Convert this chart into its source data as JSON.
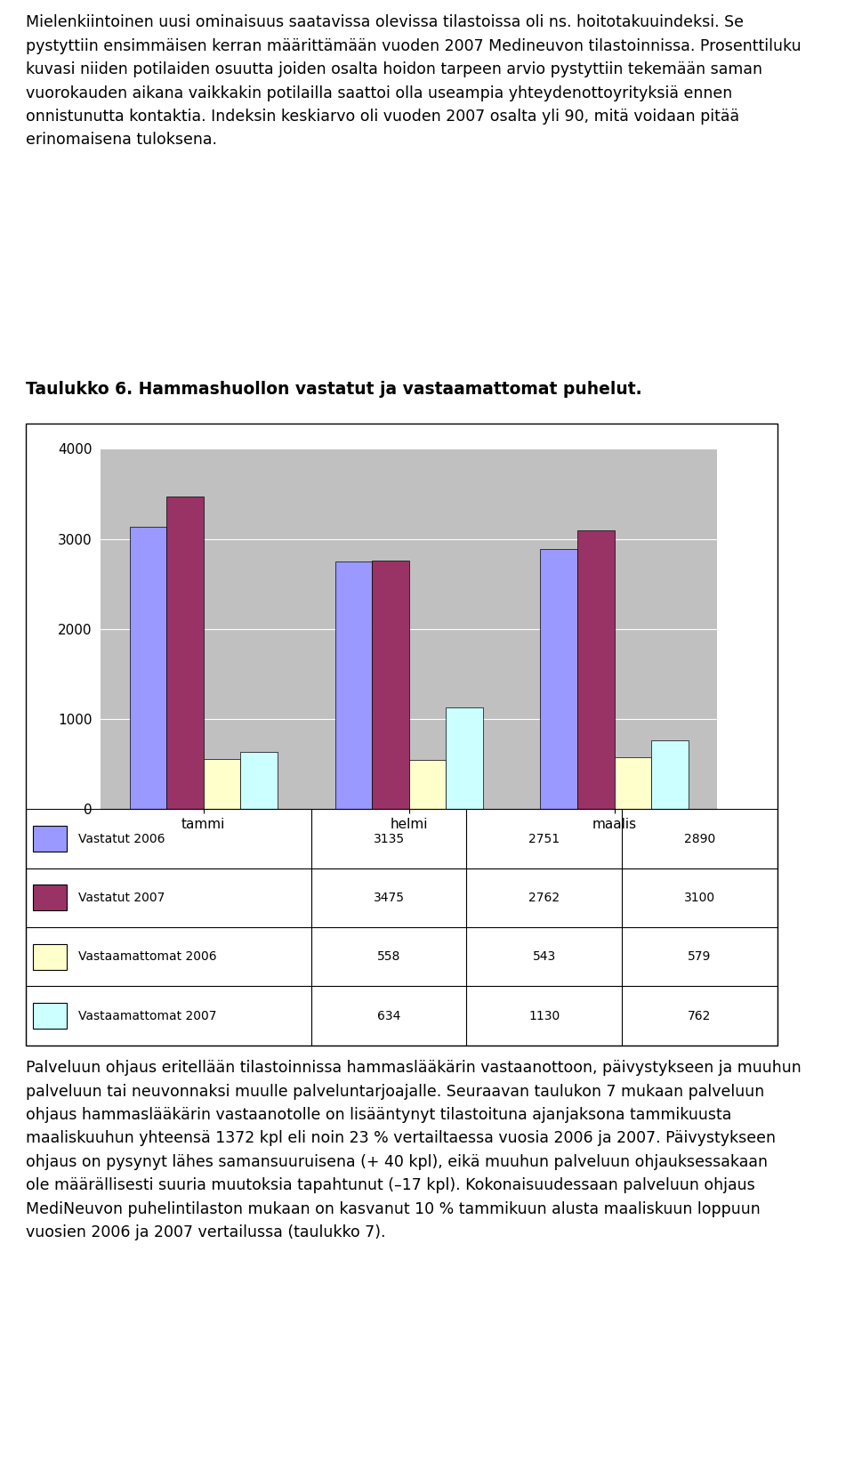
{
  "title": "Taulukko 6. Hammashuollon vastatut ja vastaamattomat puhelut.",
  "categories": [
    "tammi",
    "helmi",
    "maalis"
  ],
  "series": [
    {
      "label": "Vastatut 2006",
      "color": "#9999FF",
      "values": [
        3135,
        2751,
        2890
      ]
    },
    {
      "label": "Vastatut 2007",
      "color": "#993366",
      "values": [
        3475,
        2762,
        3100
      ]
    },
    {
      "label": "Vastaamattomat\n2006",
      "color": "#FFFFCC",
      "values": [
        558,
        543,
        579
      ]
    },
    {
      "label": "Vastaamattomat\n2007",
      "color": "#CCFFFF",
      "values": [
        634,
        1130,
        762
      ]
    }
  ],
  "ylim": [
    0,
    4000
  ],
  "yticks": [
    0,
    1000,
    2000,
    3000,
    4000
  ],
  "chart_bg": "#C0C0C0",
  "outer_bg": "#FFFFFF",
  "para1_lines": [
    "Mielenkiintoinen uusi ominaisuus saatavissa olevissa tilastoissa oli ns. hoitotakuuindeksi. Se",
    "pystyttiin ensimmäisen kerran määrittämään vuoden 2007 Medineuvon tilastoinnissa. Prosenttiluku",
    "kuvasi niiden potilaiden osuutta joiden osalta hoidon tarpeen arvio pystyttiin tekemään saman",
    "vuorokauden aikana vaikkakin potilailla saattoi olla useampia yhteydenottoyrityksiä ennen",
    "onnistunutta kontaktia. Indeksin keskiarvo oli vuoden 2007 osalta yli 90, mitä voidaan pitää",
    "erinomaisena tuloksena."
  ],
  "para2_lines": [
    "Palveluun ohjaus eritellään tilastoinnissa hammaslääkärin vastaanottoon, päivystykseen ja muuhun",
    "palveluun tai neuvonnaksi muulle palveluntarjoajalle. Seuraavan taulukon 7 mukaan palveluun",
    "ohjaus hammaslääkärin vastaanotolle on lisääntynyt tilastoituna ajanjaksona tammikuusta",
    "maaliskuuhun yhteensä 1372 kpl eli noin 23 % vertailtaessa vuosia 2006 ja 2007. Päivystykseen",
    "ohjaus on pysynyt lähes samansuuruisena (+ 40 kpl), eikä muuhun palveluun ohjauksessakaan",
    "ole määrällisesti suuria muutoksia tapahtunut (–17 kpl). Kokonaisuudessaan palveluun ohjaus",
    "MediNeuvon puhelintilaston mukaan on kasvanut 10 % tammikuun alusta maaliskuun loppuun",
    "vuosien 2006 ja 2007 vertailussa (taulukko 7)."
  ],
  "font_size_body": 12.5,
  "font_size_title": 13.5
}
